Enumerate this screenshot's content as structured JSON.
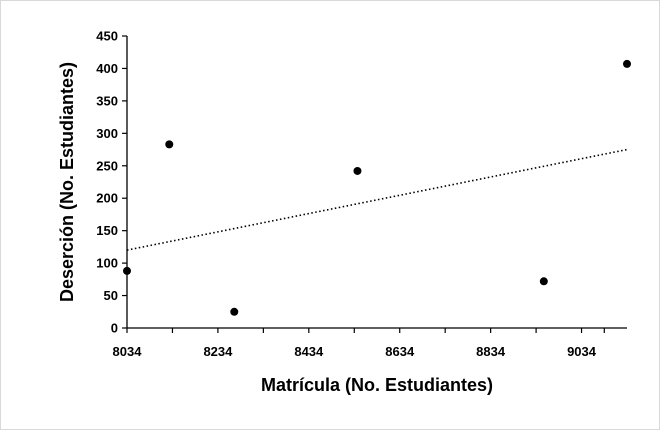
{
  "chart_data": {
    "type": "scatter",
    "title": "",
    "xlabel": "Matrícula (No. Estudiantes)",
    "ylabel": "Deserción (No. Estudiantes)",
    "xlim": [
      8034,
      9134
    ],
    "ylim": [
      0,
      450
    ],
    "xticks": [
      8034,
      8234,
      8434,
      8634,
      8834,
      9034
    ],
    "yticks": [
      0,
      50,
      100,
      150,
      200,
      250,
      300,
      350,
      400,
      450
    ],
    "grid": false,
    "legend": "none",
    "series": [
      {
        "points": [
          {
            "x": 8034,
            "y": 88
          },
          {
            "x": 8127,
            "y": 283
          },
          {
            "x": 8270,
            "y": 25
          },
          {
            "x": 8541,
            "y": 242
          },
          {
            "x": 8951,
            "y": 72
          },
          {
            "x": 9134,
            "y": 407
          }
        ],
        "marker_color": "#000000"
      }
    ],
    "trendline": {
      "style": "dotted",
      "color": "#000000",
      "y_at_xmin": 120,
      "y_at_xmax": 275
    }
  }
}
